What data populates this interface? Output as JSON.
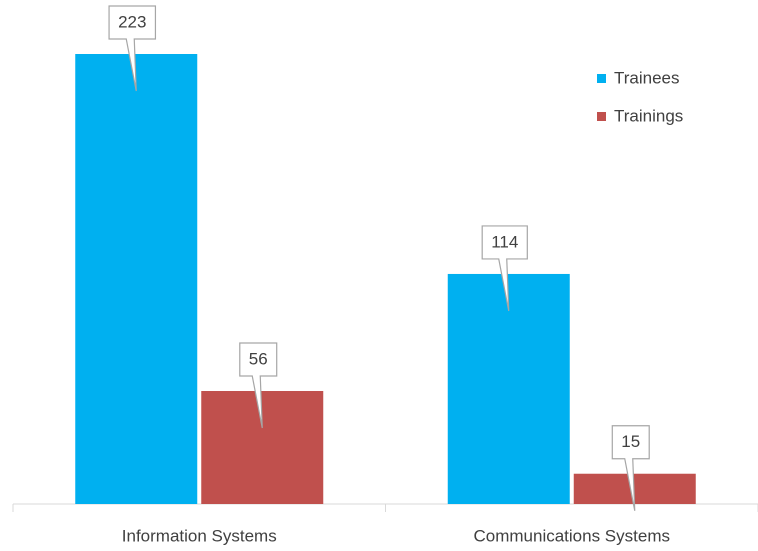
{
  "chart_data": {
    "type": "bar",
    "categories": [
      "Information Systems",
      "Communications Systems"
    ],
    "series": [
      {
        "name": "Trainees",
        "color": "#00b0f0",
        "values": [
          223,
          114
        ]
      },
      {
        "name": "Trainings",
        "color": "#c0504d",
        "values": [
          56,
          15
        ]
      }
    ],
    "legend": "top-right"
  }
}
